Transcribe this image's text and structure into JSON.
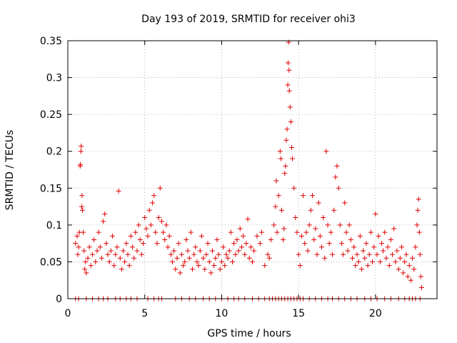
{
  "chart_data": {
    "type": "scatter",
    "title": "Day 193 of 2019, SRMTID for receiver ohi3",
    "xlabel": "GPS time / hours",
    "ylabel": "SRMTID / TECUs",
    "xlim": [
      0,
      24
    ],
    "ylim": [
      0,
      0.35
    ],
    "xticks": [
      0,
      5,
      10,
      15,
      20
    ],
    "xtick_labels": [
      "0",
      "5",
      "10",
      "15",
      "20"
    ],
    "yticks": [
      0,
      0.05,
      0.1,
      0.15,
      0.2,
      0.25,
      0.3,
      0.35
    ],
    "ytick_labels": [
      "0",
      "0.05",
      "0.1",
      "0.15",
      "0.2",
      "0.25",
      "0.3",
      "0.35"
    ],
    "grid": true,
    "marker": "plus",
    "series_color": "#e00000",
    "series": [
      {
        "name": "SRMTID",
        "points": [
          [
            0.5,
            0.075
          ],
          [
            0.6,
            0.085
          ],
          [
            0.65,
            0.06
          ],
          [
            0.7,
            0.07
          ],
          [
            0.75,
            0.09
          ],
          [
            0.8,
            0.18
          ],
          [
            0.82,
            0.182
          ],
          [
            0.85,
            0.2
          ],
          [
            0.87,
            0.207
          ],
          [
            0.9,
            0.125
          ],
          [
            0.92,
            0.14
          ],
          [
            0.95,
            0.12
          ],
          [
            1.0,
            0.09
          ],
          [
            1.05,
            0.065
          ],
          [
            1.1,
            0.04
          ],
          [
            1.15,
            0.05
          ],
          [
            1.2,
            0.035
          ],
          [
            1.3,
            0.055
          ],
          [
            1.4,
            0.07
          ],
          [
            1.5,
            0.045
          ],
          [
            1.6,
            0.06
          ],
          [
            1.7,
            0.08
          ],
          [
            1.8,
            0.05
          ],
          [
            1.9,
            0.065
          ],
          [
            2.0,
            0.09
          ],
          [
            2.1,
            0.07
          ],
          [
            2.2,
            0.055
          ],
          [
            2.3,
            0.105
          ],
          [
            2.4,
            0.115
          ],
          [
            2.5,
            0.075
          ],
          [
            2.6,
            0.06
          ],
          [
            2.7,
            0.05
          ],
          [
            2.8,
            0.065
          ],
          [
            2.9,
            0.085
          ],
          [
            3.0,
            0.045
          ],
          [
            3.1,
            0.06
          ],
          [
            3.2,
            0.07
          ],
          [
            3.3,
            0.146
          ],
          [
            3.4,
            0.055
          ],
          [
            3.5,
            0.04
          ],
          [
            3.6,
            0.065
          ],
          [
            3.7,
            0.05
          ],
          [
            3.8,
            0.075
          ],
          [
            3.9,
            0.06
          ],
          [
            4.0,
            0.045
          ],
          [
            4.1,
            0.085
          ],
          [
            4.2,
            0.07
          ],
          [
            4.3,
            0.055
          ],
          [
            4.4,
            0.09
          ],
          [
            4.5,
            0.065
          ],
          [
            4.6,
            0.1
          ],
          [
            4.7,
            0.08
          ],
          [
            4.8,
            0.06
          ],
          [
            4.9,
            0.075
          ],
          [
            5.0,
            0.11
          ],
          [
            5.1,
            0.095
          ],
          [
            5.2,
            0.085
          ],
          [
            5.3,
            0.12
          ],
          [
            5.4,
            0.1
          ],
          [
            5.5,
            0.13
          ],
          [
            5.6,
            0.14
          ],
          [
            5.7,
            0.09
          ],
          [
            5.8,
            0.075
          ],
          [
            5.9,
            0.11
          ],
          [
            6.0,
            0.15
          ],
          [
            6.1,
            0.105
          ],
          [
            6.2,
            0.09
          ],
          [
            6.3,
            0.08
          ],
          [
            6.4,
            0.1
          ],
          [
            6.5,
            0.07
          ],
          [
            6.6,
            0.085
          ],
          [
            6.7,
            0.06
          ],
          [
            6.8,
            0.05
          ],
          [
            6.9,
            0.065
          ],
          [
            7.0,
            0.04
          ],
          [
            7.1,
            0.055
          ],
          [
            7.2,
            0.075
          ],
          [
            7.3,
            0.035
          ],
          [
            7.4,
            0.06
          ],
          [
            7.5,
            0.045
          ],
          [
            7.6,
            0.05
          ],
          [
            7.7,
            0.08
          ],
          [
            7.8,
            0.065
          ],
          [
            7.9,
            0.055
          ],
          [
            8.0,
            0.09
          ],
          [
            8.1,
            0.04
          ],
          [
            8.2,
            0.06
          ],
          [
            8.3,
            0.07
          ],
          [
            8.4,
            0.05
          ],
          [
            8.5,
            0.045
          ],
          [
            8.6,
            0.065
          ],
          [
            8.7,
            0.085
          ],
          [
            8.8,
            0.055
          ],
          [
            8.9,
            0.04
          ],
          [
            9.0,
            0.06
          ],
          [
            9.1,
            0.075
          ],
          [
            9.2,
            0.05
          ],
          [
            9.3,
            0.035
          ],
          [
            9.4,
            0.065
          ],
          [
            9.5,
            0.045
          ],
          [
            9.6,
            0.055
          ],
          [
            9.7,
            0.08
          ],
          [
            9.8,
            0.06
          ],
          [
            9.9,
            0.04
          ],
          [
            10.0,
            0.05
          ],
          [
            10.1,
            0.07
          ],
          [
            10.2,
            0.045
          ],
          [
            10.3,
            0.06
          ],
          [
            10.4,
            0.055
          ],
          [
            10.5,
            0.065
          ],
          [
            10.6,
            0.09
          ],
          [
            10.7,
            0.05
          ],
          [
            10.8,
            0.075
          ],
          [
            10.9,
            0.06
          ],
          [
            11.0,
            0.08
          ],
          [
            11.1,
            0.065
          ],
          [
            11.2,
            0.095
          ],
          [
            11.3,
            0.07
          ],
          [
            11.4,
            0.085
          ],
          [
            11.5,
            0.06
          ],
          [
            11.6,
            0.075
          ],
          [
            11.7,
            0.108
          ],
          [
            11.8,
            0.055
          ],
          [
            11.9,
            0.07
          ],
          [
            12.0,
            0.05
          ],
          [
            12.1,
            0.065
          ],
          [
            12.3,
            0.085
          ],
          [
            12.5,
            0.075
          ],
          [
            12.6,
            0.09
          ],
          [
            12.8,
            0.045
          ],
          [
            13.0,
            0.06
          ],
          [
            13.1,
            0.055
          ],
          [
            13.2,
            0.08
          ],
          [
            13.4,
            0.1
          ],
          [
            13.5,
            0.125
          ],
          [
            13.55,
            0.16
          ],
          [
            13.6,
            0.09
          ],
          [
            13.7,
            0.14
          ],
          [
            13.8,
            0.2
          ],
          [
            13.85,
            0.19
          ],
          [
            13.9,
            0.12
          ],
          [
            14.0,
            0.08
          ],
          [
            14.05,
            0.095
          ],
          [
            14.1,
            0.17
          ],
          [
            14.15,
            0.18
          ],
          [
            14.2,
            0.215
          ],
          [
            14.25,
            0.23
          ],
          [
            14.3,
            0.29
          ],
          [
            14.32,
            0.32
          ],
          [
            14.35,
            0.348
          ],
          [
            14.38,
            0.31
          ],
          [
            14.4,
            0.282
          ],
          [
            14.45,
            0.26
          ],
          [
            14.5,
            0.24
          ],
          [
            14.55,
            0.205
          ],
          [
            14.6,
            0.19
          ],
          [
            14.7,
            0.15
          ],
          [
            14.8,
            0.11
          ],
          [
            14.9,
            0.09
          ],
          [
            15.0,
            0.06
          ],
          [
            15.1,
            0.045
          ],
          [
            15.2,
            0.085
          ],
          [
            15.3,
            0.14
          ],
          [
            15.4,
            0.075
          ],
          [
            15.5,
            0.09
          ],
          [
            15.6,
            0.065
          ],
          [
            15.7,
            0.1
          ],
          [
            15.8,
            0.12
          ],
          [
            15.9,
            0.14
          ],
          [
            16.0,
            0.08
          ],
          [
            16.1,
            0.095
          ],
          [
            16.2,
            0.06
          ],
          [
            16.3,
            0.13
          ],
          [
            16.4,
            0.085
          ],
          [
            16.5,
            0.07
          ],
          [
            16.6,
            0.11
          ],
          [
            16.7,
            0.055
          ],
          [
            16.8,
            0.2
          ],
          [
            16.9,
            0.1
          ],
          [
            17.0,
            0.075
          ],
          [
            17.1,
            0.09
          ],
          [
            17.2,
            0.06
          ],
          [
            17.3,
            0.12
          ],
          [
            17.4,
            0.165
          ],
          [
            17.5,
            0.18
          ],
          [
            17.6,
            0.15
          ],
          [
            17.7,
            0.1
          ],
          [
            17.8,
            0.075
          ],
          [
            17.9,
            0.06
          ],
          [
            18.0,
            0.13
          ],
          [
            18.1,
            0.09
          ],
          [
            18.2,
            0.065
          ],
          [
            18.3,
            0.1
          ],
          [
            18.4,
            0.08
          ],
          [
            18.5,
            0.055
          ],
          [
            18.6,
            0.07
          ],
          [
            18.7,
            0.045
          ],
          [
            18.8,
            0.06
          ],
          [
            18.9,
            0.05
          ],
          [
            19.0,
            0.085
          ],
          [
            19.1,
            0.04
          ],
          [
            19.2,
            0.065
          ],
          [
            19.3,
            0.055
          ],
          [
            19.4,
            0.075
          ],
          [
            19.5,
            0.045
          ],
          [
            19.6,
            0.06
          ],
          [
            19.7,
            0.09
          ],
          [
            19.8,
            0.05
          ],
          [
            19.9,
            0.07
          ],
          [
            20.0,
            0.115
          ],
          [
            20.1,
            0.06
          ],
          [
            20.2,
            0.085
          ],
          [
            20.3,
            0.05
          ],
          [
            20.4,
            0.075
          ],
          [
            20.5,
            0.065
          ],
          [
            20.6,
            0.09
          ],
          [
            20.7,
            0.055
          ],
          [
            20.8,
            0.07
          ],
          [
            20.9,
            0.045
          ],
          [
            21.0,
            0.08
          ],
          [
            21.1,
            0.06
          ],
          [
            21.2,
            0.095
          ],
          [
            21.3,
            0.05
          ],
          [
            21.4,
            0.065
          ],
          [
            21.5,
            0.04
          ],
          [
            21.6,
            0.055
          ],
          [
            21.7,
            0.07
          ],
          [
            21.8,
            0.035
          ],
          [
            21.9,
            0.05
          ],
          [
            22.0,
            0.06
          ],
          [
            22.1,
            0.03
          ],
          [
            22.2,
            0.045
          ],
          [
            22.3,
            0.025
          ],
          [
            22.4,
            0.055
          ],
          [
            22.5,
            0.04
          ],
          [
            22.6,
            0.07
          ],
          [
            22.7,
            0.1
          ],
          [
            22.75,
            0.12
          ],
          [
            22.8,
            0.135
          ],
          [
            22.85,
            0.09
          ],
          [
            22.9,
            0.06
          ],
          [
            22.95,
            0.03
          ],
          [
            23.0,
            0.015
          ],
          [
            0.5,
            0
          ],
          [
            0.7,
            0
          ],
          [
            1.2,
            0
          ],
          [
            1.6,
            0
          ],
          [
            2.0,
            0
          ],
          [
            2.3,
            0
          ],
          [
            2.6,
            0
          ],
          [
            3.1,
            0
          ],
          [
            3.4,
            0
          ],
          [
            3.8,
            0
          ],
          [
            4.1,
            0
          ],
          [
            4.5,
            0
          ],
          [
            5.2,
            0
          ],
          [
            5.6,
            0
          ],
          [
            5.9,
            0
          ],
          [
            6.1,
            0
          ],
          [
            7.0,
            0
          ],
          [
            7.4,
            0
          ],
          [
            7.9,
            0
          ],
          [
            8.3,
            0
          ],
          [
            8.8,
            0
          ],
          [
            9.2,
            0
          ],
          [
            9.6,
            0
          ],
          [
            10.0,
            0
          ],
          [
            10.4,
            0
          ],
          [
            10.8,
            0
          ],
          [
            11.1,
            0
          ],
          [
            11.5,
            0
          ],
          [
            12.0,
            0
          ],
          [
            12.4,
            0
          ],
          [
            12.8,
            0
          ],
          [
            13.1,
            0
          ],
          [
            13.3,
            0
          ],
          [
            13.5,
            0
          ],
          [
            13.7,
            0
          ],
          [
            13.9,
            0
          ],
          [
            14.1,
            0
          ],
          [
            14.3,
            0
          ],
          [
            14.5,
            0
          ],
          [
            14.7,
            0
          ],
          [
            14.9,
            0
          ],
          [
            15.1,
            0
          ],
          [
            15.3,
            0
          ],
          [
            15.7,
            0
          ],
          [
            16.1,
            0
          ],
          [
            16.5,
            0
          ],
          [
            16.9,
            0
          ],
          [
            17.2,
            0
          ],
          [
            17.6,
            0
          ],
          [
            18.0,
            0
          ],
          [
            18.4,
            0
          ],
          [
            18.8,
            0
          ],
          [
            19.3,
            0
          ],
          [
            19.7,
            0
          ],
          [
            20.1,
            0
          ],
          [
            20.6,
            0
          ],
          [
            21.0,
            0
          ],
          [
            21.5,
            0
          ],
          [
            21.9,
            0
          ],
          [
            22.2,
            0
          ],
          [
            22.4,
            0
          ],
          [
            22.6,
            0
          ],
          [
            22.9,
            0
          ]
        ]
      }
    ]
  }
}
